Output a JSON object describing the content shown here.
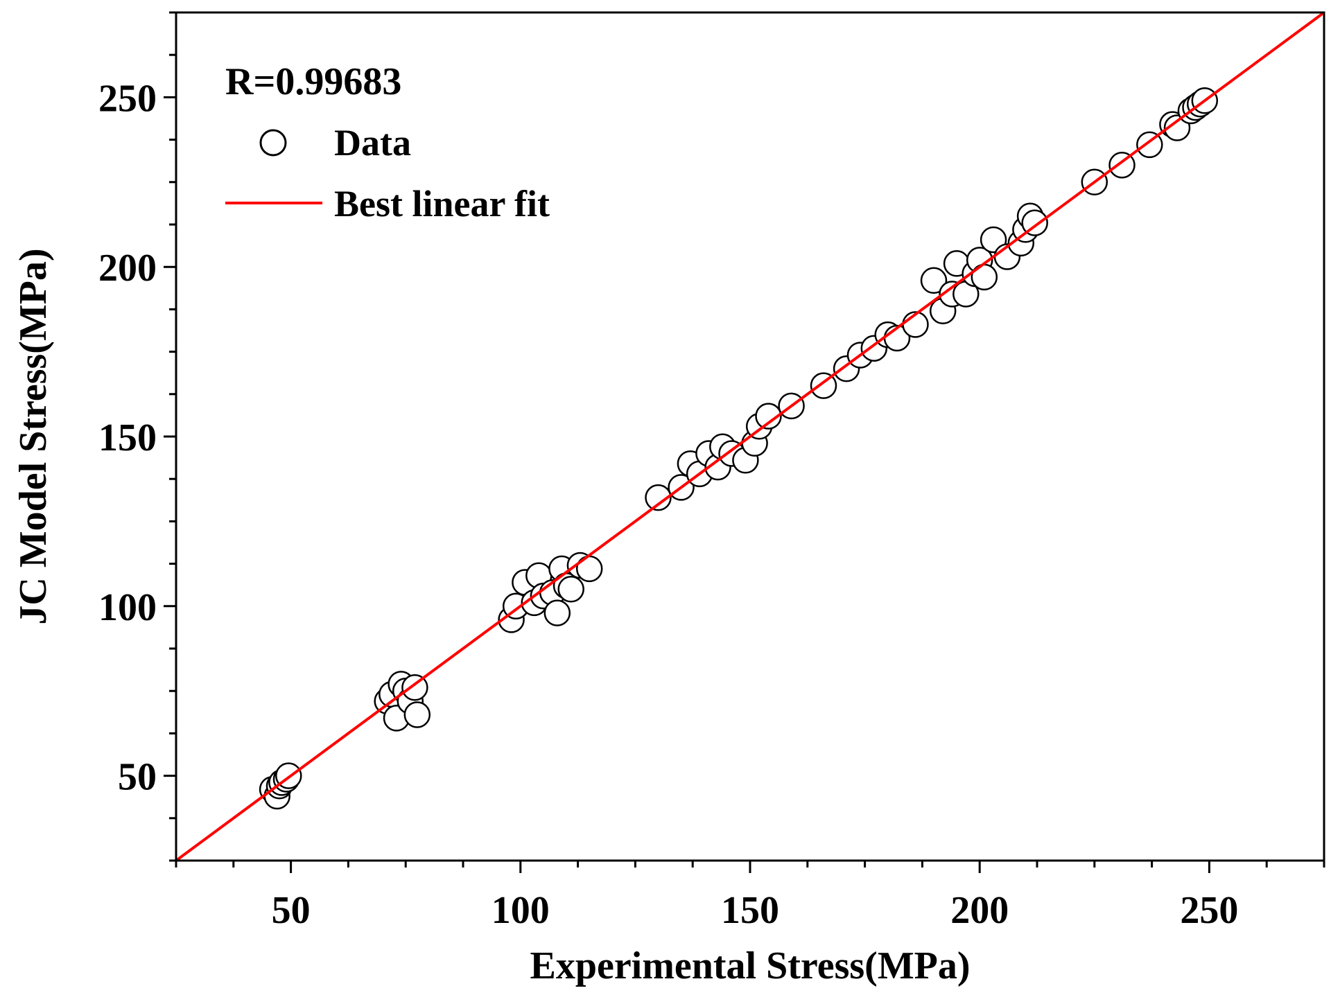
{
  "chart_data": {
    "type": "scatter",
    "title": "",
    "xlabel": "Experimental Stress(MPa)",
    "ylabel": "JC Model Stress(MPa)",
    "xlim": [
      25,
      275
    ],
    "ylim": [
      25,
      275
    ],
    "xticks": [
      50,
      100,
      150,
      200,
      250
    ],
    "yticks": [
      50,
      100,
      150,
      200,
      250
    ],
    "minor_tick_step": 12.5,
    "annotation": "R=0.99683",
    "legend": {
      "position": "top-left",
      "entries": [
        {
          "label": "Data",
          "marker": "circle"
        },
        {
          "label": "Best linear fit",
          "marker": "line"
        }
      ]
    },
    "colors": {
      "fit_line": "#ff0000",
      "marker_edge": "#000000",
      "marker_face": "#ffffff",
      "axes": "#000000"
    },
    "fit": {
      "name": "Best linear fit",
      "slope": 1.0,
      "intercept": 0.0
    },
    "series": [
      {
        "name": "Data",
        "x": [
          46,
          47,
          47.5,
          48,
          49,
          49.5,
          71,
          72,
          73,
          74,
          75,
          76,
          77,
          77.5,
          98,
          99,
          101,
          103,
          104,
          105,
          107,
          108,
          109,
          110,
          111,
          113,
          115,
          130,
          135,
          137,
          139,
          141,
          143,
          144,
          146,
          149,
          151,
          152,
          154,
          159,
          166,
          171,
          174,
          177,
          180,
          182,
          186,
          190,
          192,
          194,
          195,
          197,
          199,
          200,
          201,
          203,
          206,
          209,
          210,
          211,
          212,
          225,
          231,
          237,
          242,
          243,
          246,
          247,
          248,
          249
        ],
        "y": [
          46,
          44,
          47,
          48,
          49,
          50,
          72,
          74,
          67,
          77,
          75,
          72,
          76,
          68,
          96,
          100,
          107,
          101,
          109,
          103,
          104,
          98,
          111,
          106,
          105,
          112,
          111,
          132,
          135,
          142,
          139,
          145,
          141,
          147,
          145,
          143,
          148,
          153,
          156,
          159,
          165,
          170,
          174,
          176,
          180,
          179,
          183,
          196,
          187,
          192,
          201,
          192,
          198,
          202,
          197,
          208,
          203,
          207,
          211,
          215,
          213,
          225,
          230,
          236,
          242,
          241,
          246,
          247,
          248,
          249
        ]
      }
    ]
  }
}
